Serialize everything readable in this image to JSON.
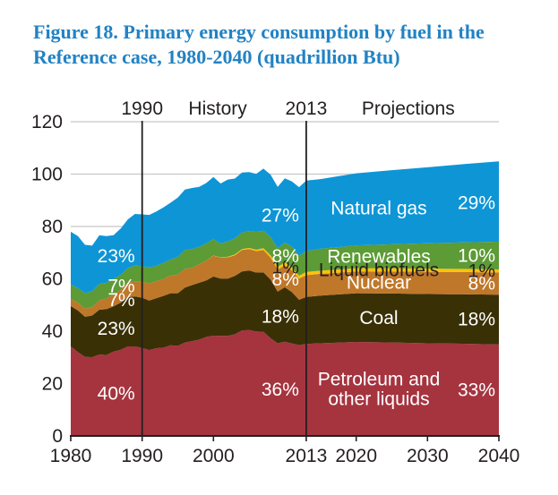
{
  "title": {
    "line1": "Figure 18. Primary energy consumption by fuel in the",
    "line2": "Reference case, 1980-2040 (quadrillion Btu)",
    "color": "#2182c4"
  },
  "chart_data": {
    "type": "area",
    "stacked": true,
    "title": "Figure 18. Primary energy consumption by fuel in the Reference case, 1980-2040 (quadrillion Btu)",
    "unit": "quadrillion Btu",
    "xlim": [
      1980,
      2040
    ],
    "ylim": [
      0,
      120
    ],
    "grid": true,
    "grid_color": "#c8c8c8",
    "axis_color": "#231f20",
    "y_ticks": [
      0,
      20,
      40,
      60,
      80,
      100,
      120
    ],
    "x_ticks": [
      {
        "year": 1980,
        "label": "1980"
      },
      {
        "year": 1990,
        "label": "1990"
      },
      {
        "year": 2000,
        "label": "2000"
      },
      {
        "year": 2013,
        "label": "2013"
      },
      {
        "year": 2020,
        "label": "2020"
      },
      {
        "year": 2030,
        "label": "2030"
      },
      {
        "year": 2040,
        "label": "2040"
      }
    ],
    "era_lines": [
      1990,
      2013
    ],
    "era_labels": [
      "1990",
      "History",
      "2013",
      "Projections"
    ],
    "pct_column_keys": [
      "1990",
      "2013",
      "2040"
    ],
    "x": [
      1980,
      1981,
      1982,
      1983,
      1984,
      1985,
      1986,
      1987,
      1988,
      1989,
      1990,
      1991,
      1992,
      1993,
      1994,
      1995,
      1996,
      1997,
      1998,
      1999,
      2000,
      2001,
      2002,
      2003,
      2004,
      2005,
      2006,
      2007,
      2008,
      2009,
      2010,
      2011,
      2012,
      2013,
      2015,
      2020,
      2025,
      2030,
      2035,
      2040
    ],
    "series": [
      {
        "id": "petroleum",
        "name": "Petroleum and other liquids",
        "name_lines": [
          "Petroleum and",
          "other liquids"
        ],
        "color": "#a5343f",
        "label_color": "#ffffff",
        "pct": {
          "1990": "40%",
          "2013": "36%",
          "2040": "33%"
        },
        "values": [
          34.2,
          32.0,
          30.2,
          30.1,
          31.1,
          30.9,
          32.2,
          32.9,
          34.2,
          34.2,
          33.6,
          32.8,
          33.5,
          33.7,
          34.6,
          34.4,
          35.7,
          36.2,
          36.8,
          37.8,
          38.3,
          38.2,
          38.2,
          38.8,
          40.3,
          40.4,
          39.9,
          39.8,
          37.3,
          35.4,
          36.0,
          35.3,
          34.7,
          35.1,
          35.4,
          35.9,
          35.7,
          35.4,
          35.2,
          34.9
        ]
      },
      {
        "id": "coal",
        "name": "Coal",
        "name_lines": [
          "Coal"
        ],
        "color": "#3a3006",
        "label_color": "#ffffff",
        "pct": {
          "1990": "23%",
          "2013": "18%",
          "2040": "18%"
        },
        "values": [
          15.4,
          15.9,
          15.3,
          15.9,
          17.1,
          17.5,
          17.3,
          18.0,
          18.8,
          19.1,
          19.2,
          18.9,
          19.1,
          19.8,
          19.9,
          20.1,
          21.0,
          21.4,
          21.7,
          21.6,
          22.6,
          21.9,
          21.9,
          22.3,
          22.5,
          22.8,
          22.5,
          22.7,
          22.4,
          19.7,
          20.8,
          19.6,
          17.3,
          18.0,
          18.2,
          18.6,
          18.7,
          18.8,
          18.9,
          19.0
        ]
      },
      {
        "id": "nuclear",
        "name": "Nuclear",
        "name_lines": [
          "Nuclear"
        ],
        "color": "#bf772a",
        "label_color": "#ffffff",
        "pct": {
          "1990": "7%",
          "2013": "8%",
          "2040": "8%"
        },
        "values": [
          2.7,
          3.0,
          3.1,
          3.2,
          3.6,
          4.1,
          4.4,
          4.9,
          5.6,
          5.6,
          6.1,
          6.5,
          6.5,
          6.5,
          6.8,
          7.1,
          7.1,
          6.6,
          7.1,
          7.6,
          7.9,
          8.0,
          8.1,
          7.9,
          8.2,
          8.2,
          8.2,
          8.5,
          8.4,
          8.4,
          8.4,
          8.3,
          8.1,
          8.3,
          8.3,
          8.3,
          8.4,
          8.5,
          8.5,
          8.5
        ]
      },
      {
        "id": "liquid-biofuels",
        "name": "Liquid biofuels",
        "name_lines": [
          "Liquid biofuels"
        ],
        "color": "#ffc20a",
        "label_color": "#231f20",
        "pct": {
          "2013": "1%",
          "2040": "1%"
        },
        "values": [
          0,
          0,
          0,
          0,
          0,
          0,
          0,
          0,
          0,
          0,
          0,
          0,
          0,
          0,
          0,
          0,
          0,
          0,
          0,
          0,
          0.1,
          0.1,
          0.2,
          0.3,
          0.4,
          0.4,
          0.5,
          0.7,
          0.9,
          1.0,
          1.1,
          1.1,
          1.1,
          1.2,
          1.2,
          1.2,
          1.2,
          1.2,
          1.2,
          1.2
        ]
      },
      {
        "id": "renewables",
        "name": "Renewables",
        "name_lines": [
          "Renewables"
        ],
        "color": "#5c9b35",
        "label_color": "#ffffff",
        "pct": {
          "1990": "7%",
          "2013": "8%",
          "2040": "10%"
        },
        "values": [
          5.5,
          5.5,
          5.9,
          6.1,
          6.3,
          6.0,
          6.1,
          5.7,
          5.5,
          6.2,
          6.0,
          6.1,
          5.9,
          6.1,
          6.1,
          6.7,
          7.2,
          7.2,
          6.6,
          6.6,
          6.2,
          5.3,
          5.9,
          6.2,
          6.3,
          6.4,
          6.8,
          6.7,
          7.0,
          7.2,
          7.5,
          8.0,
          7.7,
          8.0,
          8.4,
          8.8,
          9.2,
          9.7,
          10.1,
          10.6
        ]
      },
      {
        "id": "natural-gas",
        "name": "Natural gas",
        "name_lines": [
          "Natural gas"
        ],
        "color": "#0e95d6",
        "label_color": "#ffffff",
        "pct": {
          "1990": "23%",
          "2013": "27%",
          "2040": "29%"
        },
        "values": [
          20.2,
          19.9,
          18.5,
          17.4,
          18.5,
          17.8,
          16.7,
          17.7,
          18.6,
          19.7,
          19.7,
          20.1,
          20.7,
          21.2,
          21.7,
          22.7,
          23.1,
          23.3,
          22.9,
          23.0,
          23.8,
          22.9,
          23.6,
          22.8,
          22.9,
          22.6,
          22.2,
          23.7,
          23.8,
          23.4,
          24.6,
          24.9,
          26.1,
          26.9,
          26.6,
          27.5,
          28.3,
          29.0,
          29.9,
          30.7
        ]
      }
    ]
  }
}
